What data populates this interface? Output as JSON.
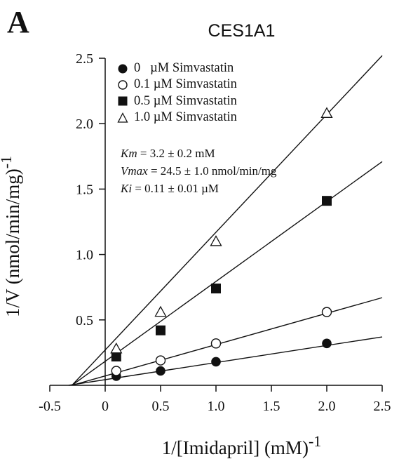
{
  "panel_label": "A",
  "chart_data": {
    "type": "line",
    "title": "CES1A1",
    "xlabel": "1/[Imidapril] (mM)",
    "xlabel_exponent": "-1",
    "ylabel": "1/V (nmol/min/mg)",
    "ylabel_exponent": "-1",
    "xlim": [
      -0.5,
      2.5
    ],
    "ylim": [
      0,
      2.5
    ],
    "x_ticks": [
      "-0.5",
      "0",
      "0.5",
      "1.0",
      "1.5",
      "2.0",
      "2.5"
    ],
    "y_ticks": [
      "0.5",
      "1.0",
      "1.5",
      "2.0",
      "2.5"
    ],
    "grid": false,
    "legend_position": "top-left",
    "series": [
      {
        "name": "0   µM Simvastatin",
        "marker": "filled-circle",
        "x": [
          0.1,
          0.5,
          1.0,
          2.0
        ],
        "y": [
          0.07,
          0.11,
          0.18,
          0.32
        ],
        "fit_line": [
          [
            -0.33,
            0.0
          ],
          [
            2.5,
            0.37
          ]
        ]
      },
      {
        "name": "0.1 µM Simvastatin",
        "marker": "open-circle",
        "x": [
          0.1,
          0.5,
          1.0,
          2.0
        ],
        "y": [
          0.11,
          0.19,
          0.32,
          0.56
        ],
        "fit_line": [
          [
            -0.3,
            0.0
          ],
          [
            2.5,
            0.67
          ]
        ]
      },
      {
        "name": "0.5 µM Simvastatin",
        "marker": "filled-square",
        "x": [
          0.1,
          0.5,
          1.0,
          2.0
        ],
        "y": [
          0.22,
          0.42,
          0.74,
          1.41
        ],
        "fit_line": [
          [
            -0.3,
            0.0
          ],
          [
            2.5,
            1.71
          ]
        ]
      },
      {
        "name": "1.0 µM Simvastatin",
        "marker": "open-triangle",
        "x": [
          0.1,
          0.5,
          1.0,
          2.0
        ],
        "y": [
          0.28,
          0.56,
          1.1,
          2.08
        ],
        "fit_line": [
          [
            -0.3,
            0.0
          ],
          [
            2.5,
            2.52
          ]
        ]
      }
    ],
    "annotations": {
      "km_label": "Km",
      "km_value": " = 3.2 ± 0.2 mM",
      "vmax_label": "Vmax",
      "vmax_value": " = 24.5 ± 1.0 nmol/min/mg",
      "ki_label": "Ki",
      "ki_value": " = 0.11 ± 0.01 µM"
    }
  }
}
